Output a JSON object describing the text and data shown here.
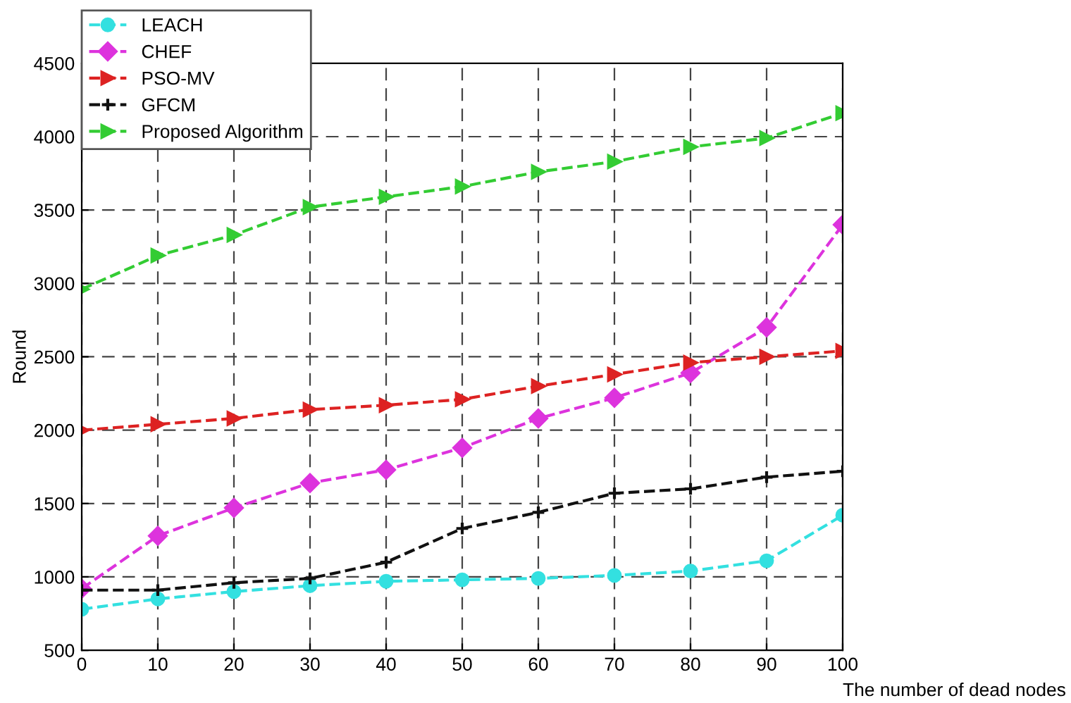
{
  "chart_data": {
    "type": "line",
    "xlabel": "The number of dead nodes",
    "ylabel": "Round",
    "x": [
      0,
      10,
      20,
      30,
      40,
      50,
      60,
      70,
      80,
      90,
      100
    ],
    "series": [
      {
        "name": "LEACH",
        "color": "#33e0e0",
        "marker": "circle",
        "values": [
          780,
          850,
          900,
          940,
          970,
          980,
          990,
          1010,
          1040,
          1110,
          1420
        ]
      },
      {
        "name": "CHEF",
        "color": "#dd33dd",
        "marker": "diamond",
        "values": [
          920,
          1280,
          1470,
          1640,
          1730,
          1880,
          2080,
          2220,
          2390,
          2700,
          3400
        ]
      },
      {
        "name": "PSO-MV",
        "color": "#dd2222",
        "marker": "triangle",
        "values": [
          2000,
          2040,
          2080,
          2140,
          2170,
          2210,
          2300,
          2380,
          2460,
          2500,
          2540
        ]
      },
      {
        "name": "GFCM",
        "color": "#111111",
        "marker": "cross",
        "values": [
          910,
          910,
          960,
          990,
          1100,
          1330,
          1440,
          1570,
          1600,
          1680,
          1720
        ]
      },
      {
        "name": "Proposed Algorithm",
        "color": "#33cc33",
        "marker": "triangle",
        "values": [
          2960,
          3190,
          3330,
          3520,
          3590,
          3660,
          3760,
          3830,
          3930,
          3990,
          4160
        ]
      }
    ],
    "xlim": [
      0,
      100
    ],
    "xticks": [
      0,
      10,
      20,
      30,
      40,
      50,
      60,
      70,
      80,
      90,
      100
    ],
    "ylim": [
      500,
      4500
    ],
    "yticks": [
      500,
      1000,
      1500,
      2000,
      2500,
      3000,
      3500,
      4000,
      4500
    ],
    "grid": true,
    "legend": "top left",
    "line_style": "dashed"
  }
}
